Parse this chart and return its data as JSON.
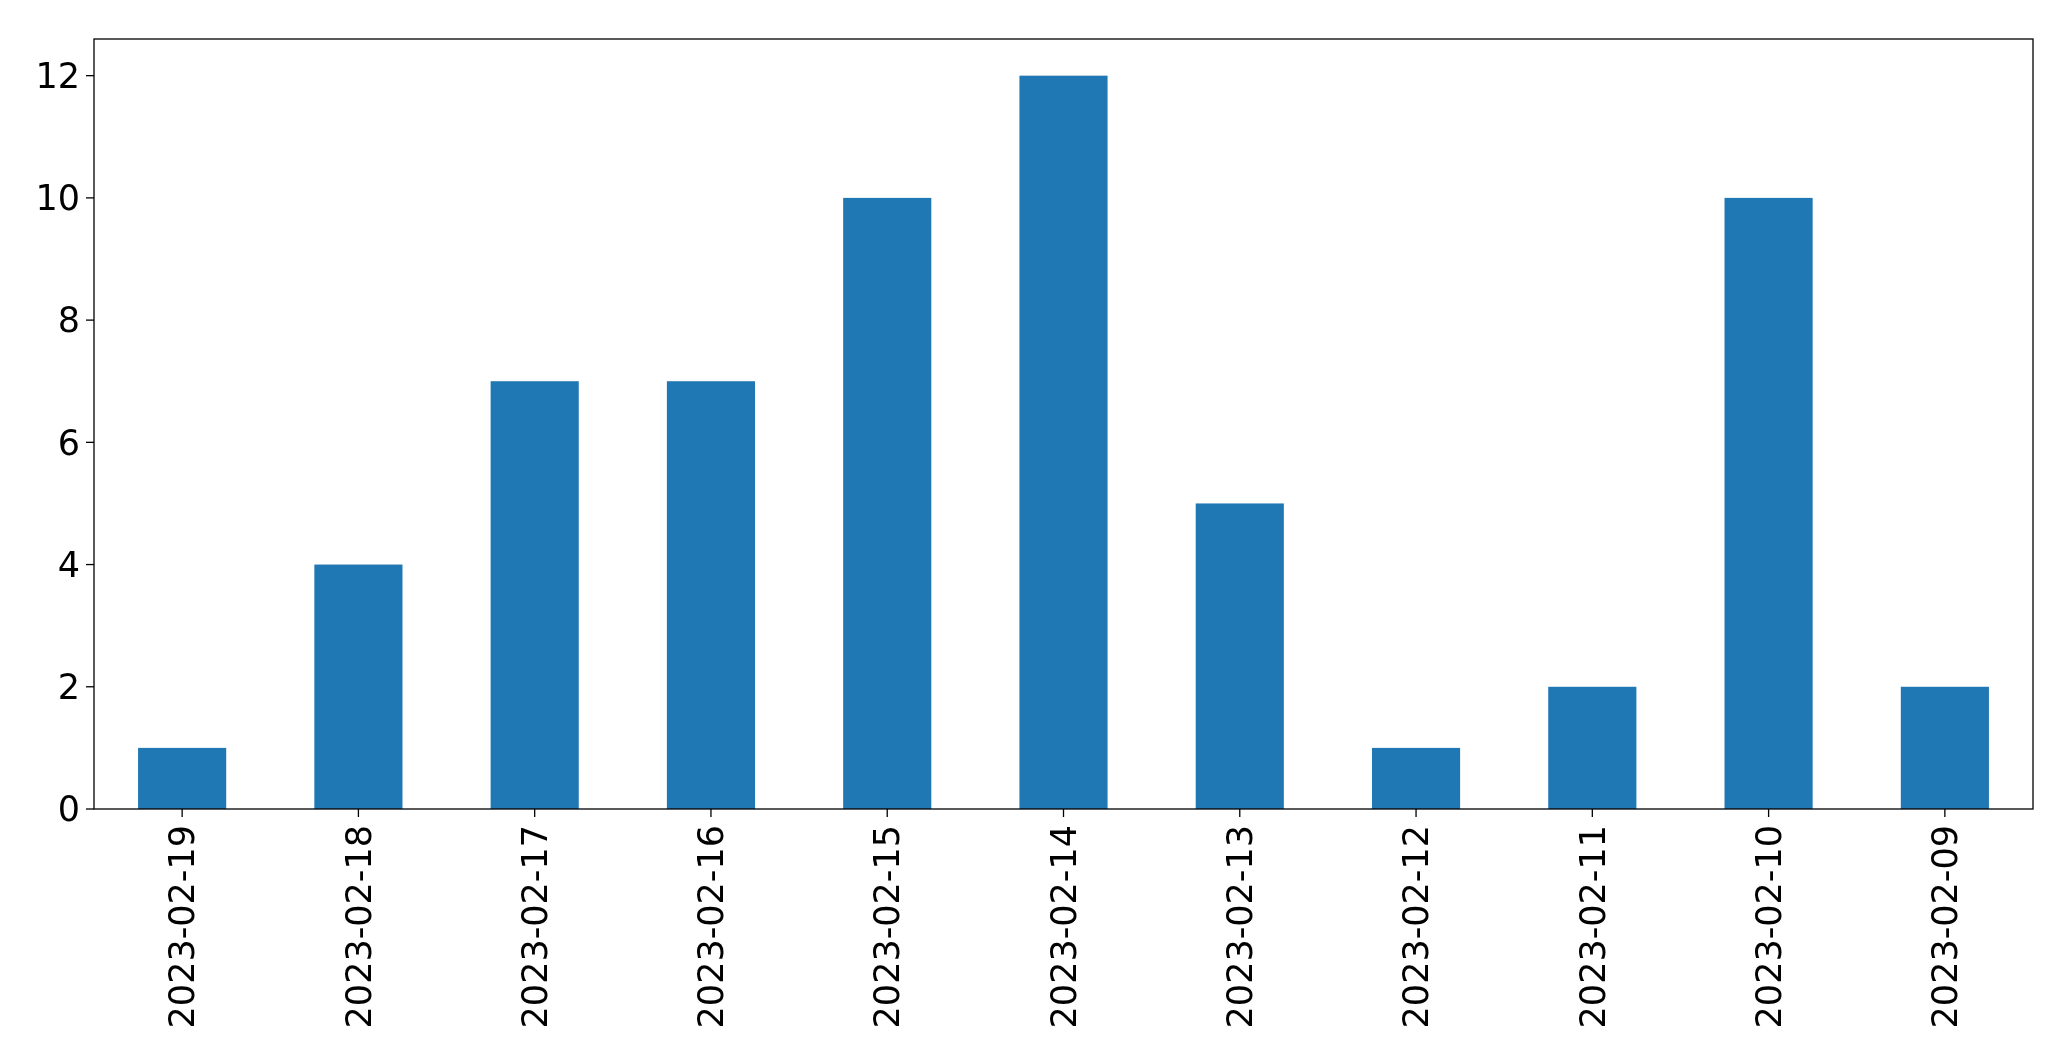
{
  "chart_data": {
    "type": "bar",
    "categories": [
      "2023-02-19",
      "2023-02-18",
      "2023-02-17",
      "2023-02-16",
      "2023-02-15",
      "2023-02-14",
      "2023-02-13",
      "2023-02-12",
      "2023-02-11",
      "2023-02-10",
      "2023-02-09"
    ],
    "values": [
      1,
      4,
      7,
      7,
      10,
      12,
      5,
      1,
      2,
      10,
      2
    ],
    "color": "#1f77b4",
    "ylim": [
      0,
      12.6
    ],
    "yticks": [
      0,
      2,
      4,
      6,
      8,
      10,
      12
    ]
  }
}
